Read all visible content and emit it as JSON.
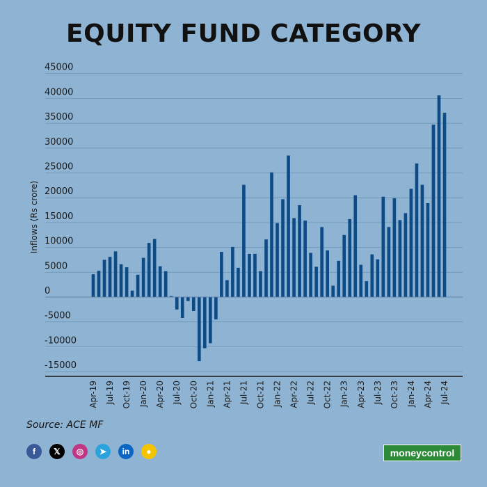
{
  "title": "EQUITY FUND CATEGORY",
  "source": "Source: ACE MF",
  "brand": "moneycontrol",
  "socials": [
    {
      "icon": "facebook-icon",
      "glyph": "f",
      "color": "#3b5998"
    },
    {
      "icon": "x-icon",
      "glyph": "𝕏",
      "color": "#000000"
    },
    {
      "icon": "instagram-icon",
      "glyph": "◎",
      "color": "#c13584"
    },
    {
      "icon": "telegram-icon",
      "glyph": "➤",
      "color": "#2aa3dc"
    },
    {
      "icon": "linkedin-icon",
      "glyph": "in",
      "color": "#0a66c2"
    },
    {
      "icon": "koo-icon",
      "glyph": "●",
      "color": "#f4c400"
    }
  ],
  "chart_data": {
    "type": "bar",
    "ylabel": "Inflows (Rs crore)",
    "ylim": [
      -15000,
      45000
    ],
    "yticks": [
      -15000,
      -10000,
      -5000,
      0,
      5000,
      10000,
      15000,
      20000,
      25000,
      30000,
      35000,
      40000,
      45000
    ],
    "grid": true,
    "bar_color": "#0e4a84",
    "categories": [
      "Apr-19",
      "May-19",
      "Jun-19",
      "Jul-19",
      "Aug-19",
      "Sep-19",
      "Oct-19",
      "Nov-19",
      "Dec-19",
      "Jan-20",
      "Feb-20",
      "Mar-20",
      "Apr-20",
      "May-20",
      "Jun-20",
      "Jul-20",
      "Aug-20",
      "Sep-20",
      "Oct-20",
      "Nov-20",
      "Dec-20",
      "Jan-21",
      "Feb-21",
      "Mar-21",
      "Apr-21",
      "May-21",
      "Jun-21",
      "Jul-21",
      "Aug-21",
      "Sep-21",
      "Oct-21",
      "Nov-21",
      "Dec-21",
      "Jan-22",
      "Feb-22",
      "Mar-22",
      "Apr-22",
      "May-22",
      "Jun-22",
      "Jul-22",
      "Aug-22",
      "Sep-22",
      "Oct-22",
      "Nov-22",
      "Dec-22",
      "Jan-23",
      "Feb-23",
      "Mar-23",
      "Apr-23",
      "May-23",
      "Jun-23",
      "Jul-23",
      "Aug-23",
      "Sep-23",
      "Oct-23",
      "Nov-23",
      "Dec-23",
      "Jan-24",
      "Feb-24",
      "Mar-24",
      "Apr-24",
      "May-24",
      "Jun-24",
      "Jul-24"
    ],
    "xtick_labels": [
      "Apr-19",
      "Jul-19",
      "Oct-19",
      "Jan-20",
      "Apr-20",
      "Jul-20",
      "Oct-20",
      "Jan-21",
      "Apr-21",
      "Jul-21",
      "Oct-21",
      "Jan-22",
      "Apr-22",
      "Jul-22",
      "Oct-22",
      "Jan-23",
      "Apr-23",
      "Jul-23",
      "Oct-23",
      "Jan-24",
      "Apr-24",
      "Jul-24"
    ],
    "values": [
      4600,
      5300,
      7500,
      8100,
      9200,
      6600,
      6000,
      1300,
      4500,
      7900,
      10900,
      11700,
      6200,
      5200,
      200,
      -2500,
      -4200,
      -800,
      -2800,
      -12900,
      -10300,
      -9300,
      -4500,
      9100,
      3400,
      10100,
      5900,
      22600,
      8700,
      8700,
      5200,
      11600,
      25100,
      14900,
      19700,
      28500,
      15900,
      18500,
      15400,
      8900,
      6100,
      14100,
      9400,
      2300,
      7300,
      12500,
      15700,
      20500,
      6500,
      3200,
      8600,
      7600,
      20200,
      14100,
      19900,
      15500,
      16900,
      21800,
      26900,
      22600,
      18900,
      34700,
      40600,
      37100
    ]
  }
}
